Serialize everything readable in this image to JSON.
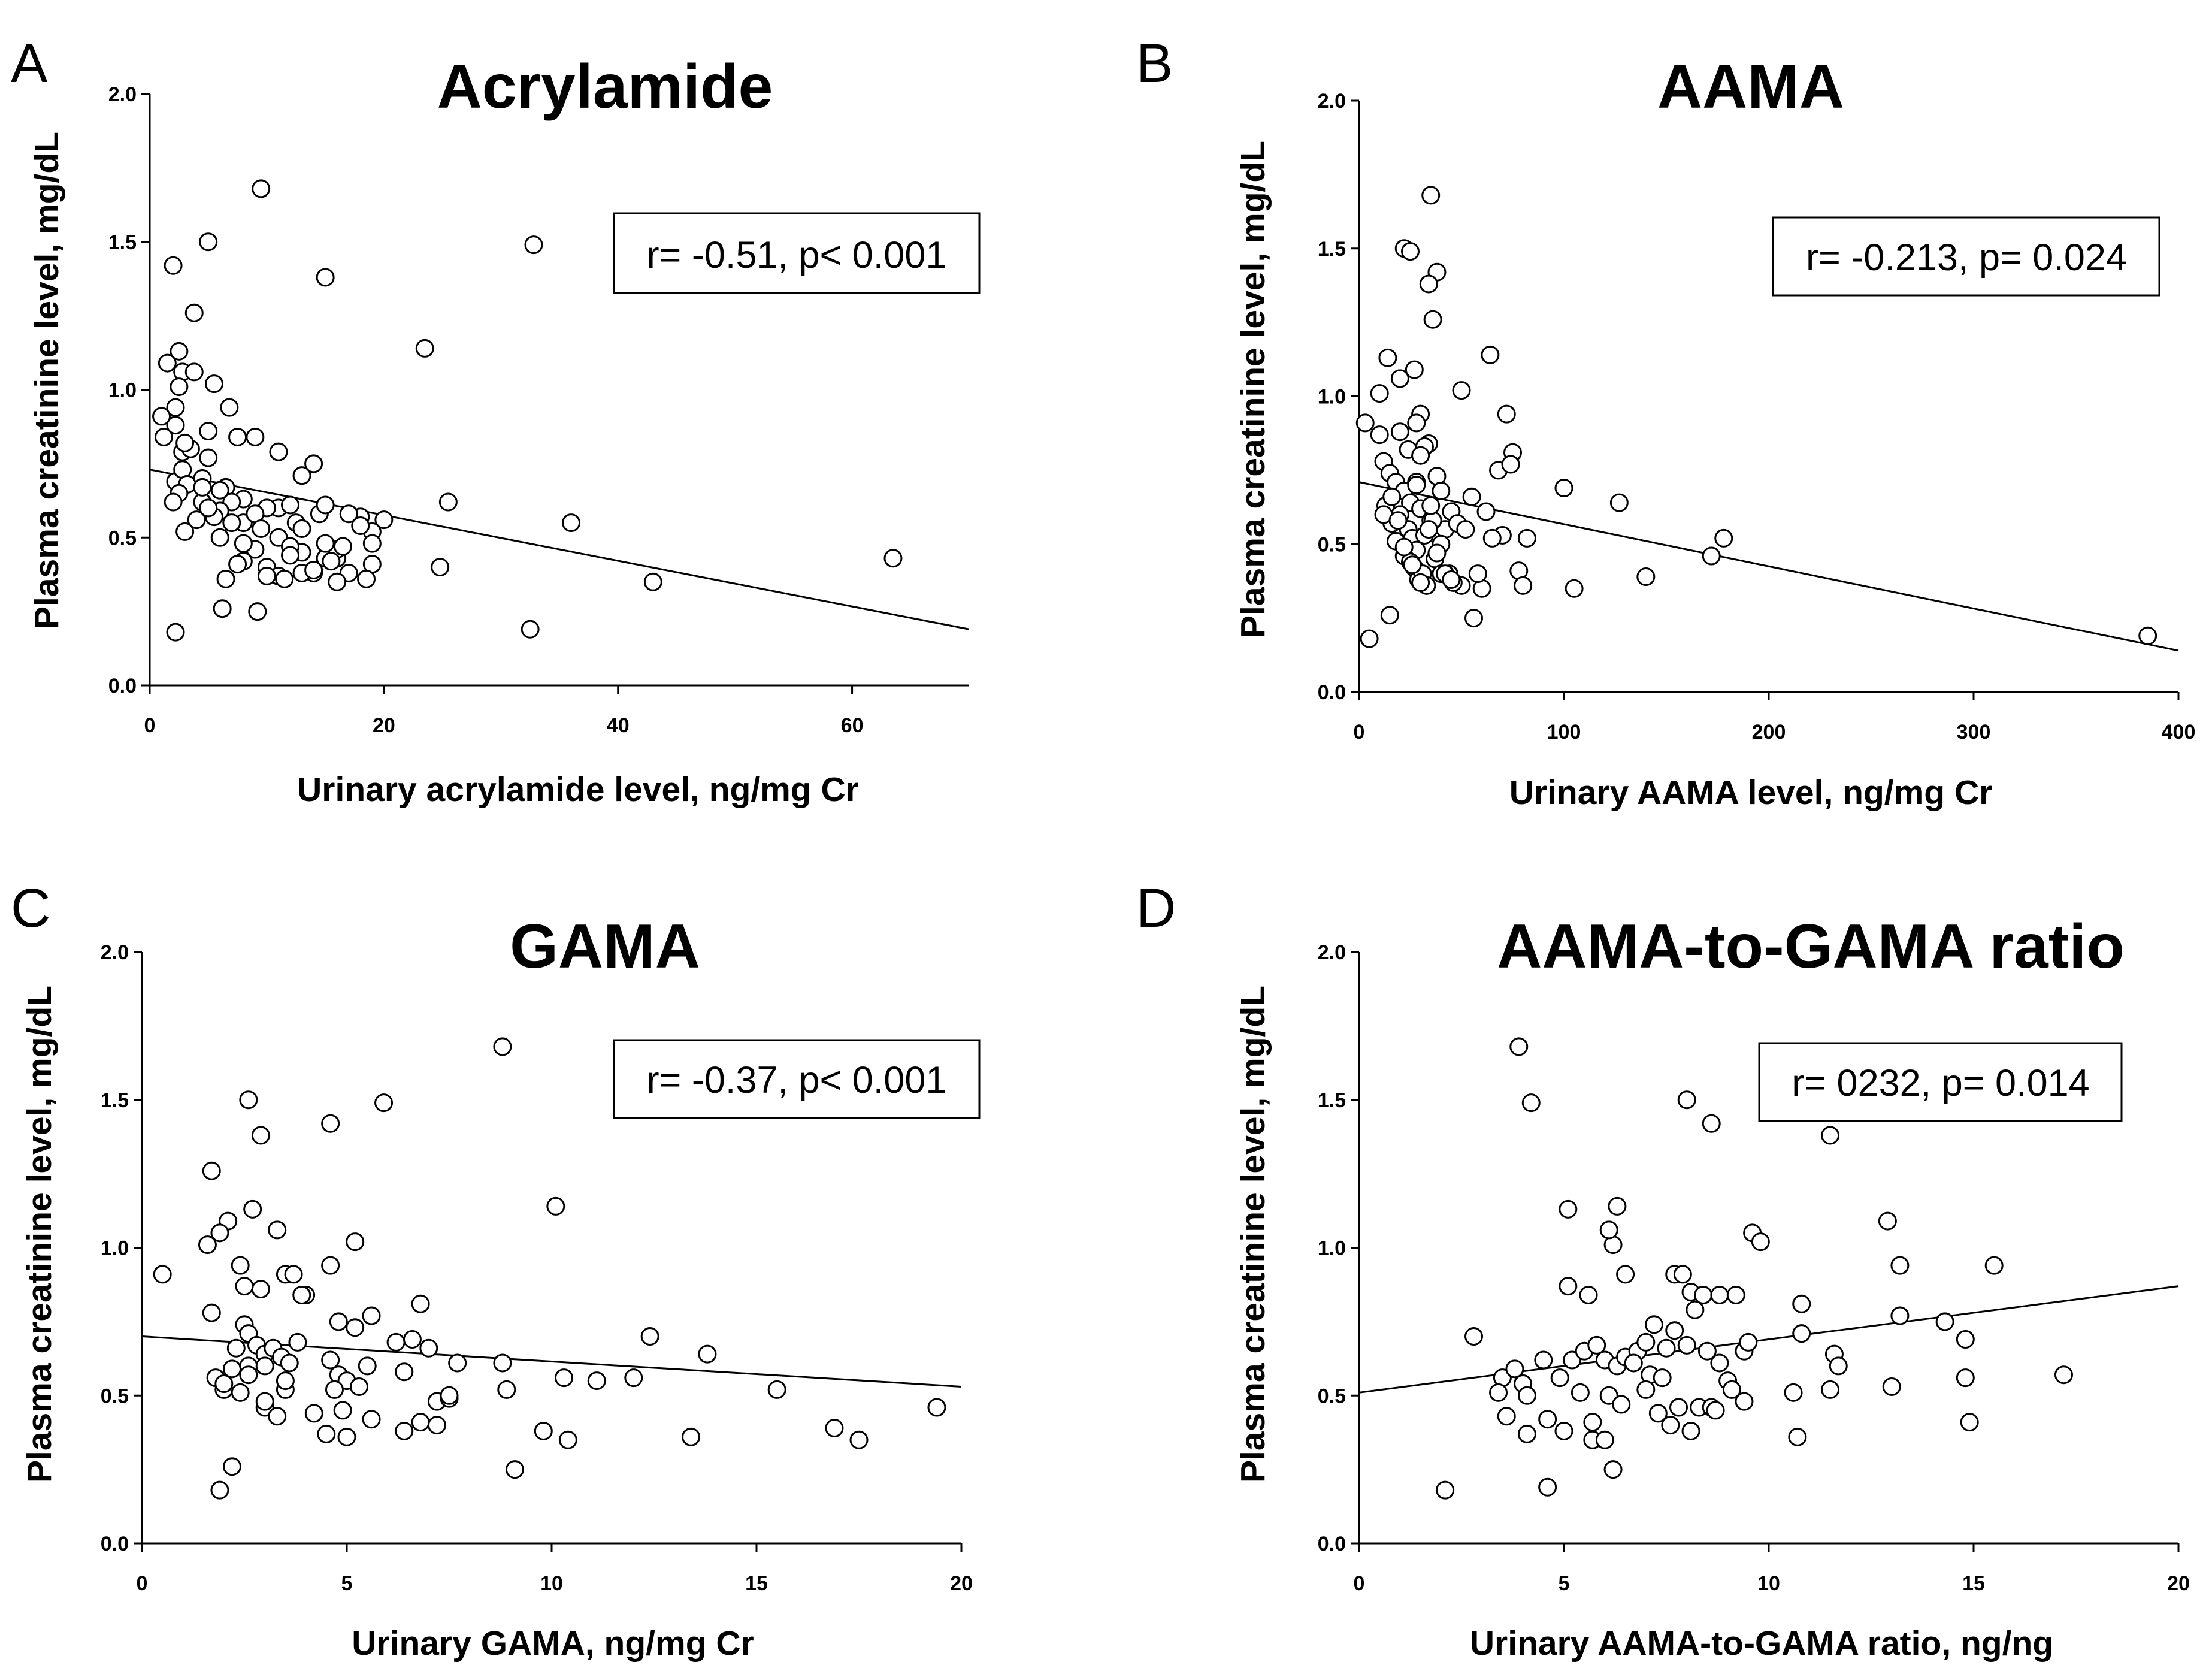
{
  "chart_data": [
    {
      "type": "scatter",
      "panel": "A",
      "title": "Acrylamide",
      "xlabel": "Urinary acrylamide level, ng/mg Cr",
      "ylabel": "Plasma creatinine level, mg/dL",
      "xlim": [
        0,
        70
      ],
      "ylim": [
        0,
        2.0
      ],
      "xticks": [
        0,
        20,
        40,
        60
      ],
      "xtick_labels": [
        "0",
        "20",
        "40",
        "60"
      ],
      "yticks": [
        0,
        0.5,
        1.0,
        1.5,
        2.0
      ],
      "ytick_labels": [
        "0.0",
        "0.5",
        "1.0",
        "1.5",
        "2.0"
      ],
      "annotation": "r= -0.51, p< 0.001",
      "regression": {
        "x": [
          0,
          70
        ],
        "y": [
          0.73,
          0.19
        ]
      },
      "points": {
        "x": [
          9.5,
          5,
          2,
          32.8,
          15,
          3.8,
          23.5,
          2.5,
          1.5,
          2.2,
          2.8,
          3.8,
          5.5,
          2.2,
          2.8,
          2.2,
          1,
          6.8,
          5,
          7.5,
          11,
          13,
          1.2,
          4.5,
          2.8,
          5,
          14,
          3.2,
          6.5,
          9,
          8,
          11,
          12,
          14.5,
          15,
          18,
          20,
          25.5,
          36,
          63.5,
          2.5,
          7,
          10,
          12.5,
          13,
          17,
          19,
          6,
          5.5,
          4,
          3,
          2.5,
          4.5,
          8,
          11,
          13,
          16,
          3.5,
          6,
          9,
          12,
          15,
          19,
          5,
          8,
          10,
          14,
          16,
          7,
          11,
          13,
          16.5,
          18.5,
          9,
          6,
          8,
          12,
          14,
          17,
          10,
          15,
          16,
          18,
          24.8,
          43,
          7.5,
          9.2,
          6.2,
          6.5,
          4.5,
          3,
          2,
          2.2,
          32.5,
          9.5,
          11.5,
          15.5,
          19
        ],
        "y": [
          1.68,
          1.5,
          1.42,
          1.49,
          1.38,
          1.26,
          1.14,
          1.13,
          1.09,
          0.94,
          1.06,
          1.06,
          1.02,
          0.88,
          0.79,
          0.69,
          0.91,
          0.94,
          0.86,
          0.84,
          0.79,
          0.71,
          0.84,
          0.7,
          0.73,
          0.77,
          0.75,
          0.68,
          0.67,
          0.84,
          0.63,
          0.6,
          0.61,
          0.58,
          0.61,
          0.57,
          0.56,
          0.62,
          0.55,
          0.43,
          0.65,
          0.62,
          0.6,
          0.55,
          0.53,
          0.58,
          0.52,
          0.59,
          0.57,
          0.56,
          0.52,
          1.01,
          0.62,
          0.55,
          0.5,
          0.45,
          0.43,
          0.8,
          0.5,
          0.46,
          0.47,
          0.43,
          0.41,
          0.6,
          0.42,
          0.4,
          0.38,
          0.46,
          0.55,
          0.37,
          0.38,
          0.47,
          0.36,
          0.58,
          0.66,
          0.48,
          0.44,
          0.39,
          0.38,
          0.37,
          0.48,
          0.35,
          0.54,
          0.4,
          0.35,
          0.41,
          0.25,
          0.26,
          0.36,
          0.67,
          0.82,
          0.62,
          0.18,
          0.19,
          0.53,
          0.36,
          0.42,
          0.48
        ]
      }
    },
    {
      "type": "scatter",
      "panel": "B",
      "title": "AAMA",
      "xlabel": "Urinary AAMA level, ng/mg Cr",
      "ylabel": "Plasma creatinine level, mg/dL",
      "xlim": [
        0,
        400
      ],
      "ylim": [
        0,
        2.0
      ],
      "xticks": [
        0,
        100,
        200,
        300,
        400
      ],
      "xtick_labels": [
        "0",
        "100",
        "200",
        "300",
        "400"
      ],
      "yticks": [
        0,
        0.5,
        1.0,
        1.5,
        2.0
      ],
      "ytick_labels": [
        "0.0",
        "0.5",
        "1.0",
        "1.5",
        "2.0"
      ],
      "annotation": "r= -0.213, p= 0.024",
      "regression": {
        "x": [
          0,
          400
        ],
        "y": [
          0.71,
          0.14
        ]
      },
      "points": {
        "x": [
          35,
          22,
          25,
          38,
          34,
          36,
          64,
          14,
          10,
          20,
          27,
          50,
          30,
          34,
          62,
          72,
          75,
          100,
          127,
          178,
          172,
          385,
          5,
          3,
          20,
          28,
          32,
          38,
          40,
          45,
          55,
          12,
          15,
          18,
          22,
          25,
          28,
          30,
          35,
          42,
          48,
          52,
          60,
          68,
          70,
          74,
          78,
          82,
          10,
          13,
          16,
          20,
          24,
          26,
          28,
          32,
          36,
          40,
          44,
          50,
          58,
          65,
          80,
          105,
          140,
          18,
          22,
          25,
          27,
          29,
          31,
          33,
          37,
          40,
          46,
          56,
          12,
          15,
          24,
          28,
          30,
          35,
          38,
          42,
          45,
          16,
          19,
          22,
          26,
          30,
          34
        ],
        "y": [
          1.68,
          1.5,
          1.49,
          1.42,
          1.38,
          1.26,
          1.14,
          1.13,
          1.01,
          1.06,
          1.09,
          1.02,
          0.94,
          0.84,
          0.61,
          0.94,
          0.81,
          0.69,
          0.64,
          0.52,
          0.46,
          0.19,
          0.18,
          0.91,
          0.88,
          0.91,
          0.83,
          0.73,
          0.68,
          0.61,
          0.66,
          0.78,
          0.74,
          0.71,
          0.68,
          0.64,
          0.71,
          0.62,
          0.58,
          0.55,
          0.57,
          0.55,
          0.35,
          0.75,
          0.53,
          0.77,
          0.41,
          0.52,
          0.87,
          0.63,
          0.57,
          0.6,
          0.55,
          0.52,
          0.48,
          0.53,
          0.58,
          0.5,
          0.4,
          0.36,
          0.4,
          0.52,
          0.36,
          0.35,
          0.39,
          0.51,
          0.46,
          0.44,
          0.42,
          0.38,
          0.4,
          0.36,
          0.45,
          0.4,
          0.37,
          0.25,
          0.6,
          0.26,
          0.82,
          0.7,
          0.8,
          0.63,
          0.47,
          0.4,
          0.38,
          0.66,
          0.58,
          0.49,
          0.43,
          0.37,
          0.55
        ]
      }
    },
    {
      "type": "scatter",
      "panel": "C",
      "title": "GAMA",
      "xlabel": "Urinary GAMA, ng/mg Cr",
      "ylabel": "Plasma creatinine level, mg/dL",
      "xlim": [
        0,
        20
      ],
      "ylim": [
        0,
        2.0
      ],
      "xticks": [
        0,
        5,
        10,
        15,
        20
      ],
      "xtick_labels": [
        "0",
        "5",
        "10",
        "15",
        "20"
      ],
      "yticks": [
        0,
        0.5,
        1.0,
        1.5,
        2.0
      ],
      "ytick_labels": [
        "0.0",
        "0.5",
        "1.0",
        "1.5",
        "2.0"
      ],
      "annotation": "r= -0.37, p< 0.001",
      "regression": {
        "x": [
          0,
          20
        ],
        "y": [
          0.7,
          0.53
        ]
      },
      "points": {
        "x": [
          8.8,
          2.6,
          5.9,
          4.6,
          2.9,
          1.7,
          10.1,
          2.7,
          2.1,
          1.9,
          3.3,
          5.2,
          1.6,
          0.5,
          2.4,
          3.5,
          3.7,
          4.0,
          2.9,
          4.6,
          2.5,
          3.9,
          6.8,
          5.6,
          4.8,
          12.4,
          13.8,
          1.7,
          2.3,
          2.5,
          2.6,
          2.8,
          3.0,
          3.2,
          3.4,
          3.6,
          3.8,
          4.6,
          4.8,
          5.0,
          5.2,
          5.5,
          6.2,
          6.4,
          6.6,
          7.0,
          7.2,
          7.5,
          7.7,
          8.8,
          10.3,
          11.1,
          12.0,
          15.5,
          16.9,
          17.5,
          19.4,
          1.8,
          2.0,
          2.2,
          2.4,
          2.6,
          3.0,
          3.3,
          3.5,
          4.7,
          4.9,
          5.3,
          6.4,
          6.8,
          7.2,
          7.5,
          8.9,
          9.1,
          9.8,
          10.4,
          13.4,
          2.0,
          2.6,
          3.0,
          3.5,
          4.2,
          4.5,
          5.0,
          5.6,
          3.0,
          2.2,
          1.9
        ],
        "y": [
          1.68,
          1.5,
          1.49,
          1.42,
          1.38,
          1.26,
          1.14,
          1.13,
          1.09,
          1.05,
          1.06,
          1.02,
          1.01,
          0.91,
          0.94,
          0.91,
          0.91,
          0.84,
          0.86,
          0.94,
          0.87,
          0.84,
          0.81,
          0.77,
          0.75,
          0.7,
          0.64,
          0.78,
          0.66,
          0.74,
          0.71,
          0.67,
          0.64,
          0.66,
          0.63,
          0.61,
          0.68,
          0.62,
          0.57,
          0.55,
          0.73,
          0.6,
          0.68,
          0.58,
          0.69,
          0.66,
          0.48,
          0.49,
          0.61,
          0.61,
          0.56,
          0.55,
          0.56,
          0.52,
          0.39,
          0.35,
          0.46,
          0.56,
          0.52,
          0.59,
          0.51,
          0.6,
          0.46,
          0.43,
          0.52,
          0.52,
          0.45,
          0.53,
          0.38,
          0.41,
          0.4,
          0.5,
          0.52,
          0.25,
          0.38,
          0.35,
          0.36,
          0.54,
          0.57,
          0.6,
          0.55,
          0.44,
          0.37,
          0.36,
          0.42,
          0.48,
          0.26,
          0.18
        ]
      }
    },
    {
      "type": "scatter",
      "panel": "D",
      "title": "AAMA-to-GAMA ratio",
      "xlabel": "Urinary AAMA-to-GAMA ratio, ng/ng",
      "ylabel": "Plasma creatinine level, mg/dL",
      "xlim": [
        0,
        20
      ],
      "ylim": [
        0,
        2.0
      ],
      "xticks": [
        0,
        5,
        10,
        15,
        20
      ],
      "xtick_labels": [
        "0",
        "5",
        "10",
        "15",
        "20"
      ],
      "yticks": [
        0,
        0.5,
        1.0,
        1.5,
        2.0
      ],
      "ytick_labels": [
        "0.0",
        "0.5",
        "1.0",
        "1.5",
        "2.0"
      ],
      "annotation": "r= 0232, p= 0.014",
      "regression": {
        "x": [
          0,
          20
        ],
        "y": [
          0.51,
          0.87
        ]
      },
      "points": {
        "x": [
          3.9,
          8.0,
          4.2,
          8.6,
          11.5,
          6.3,
          5.1,
          6.2,
          6.1,
          9.6,
          9.8,
          12.9,
          13.2,
          15.5,
          6.5,
          7.7,
          7.9,
          8.1,
          8.4,
          8.8,
          9.2,
          5.1,
          5.6,
          10.8,
          13.2,
          14.3,
          14.8,
          2.8,
          3.5,
          3.8,
          4.0,
          4.5,
          4.9,
          5.2,
          5.5,
          5.8,
          6.0,
          6.3,
          6.5,
          6.8,
          7.0,
          7.2,
          7.5,
          7.7,
          8.0,
          8.2,
          8.5,
          8.8,
          9.0,
          9.4,
          9.5,
          10.8,
          11.6,
          11.7,
          3.4,
          3.6,
          4.1,
          4.6,
          5.0,
          5.4,
          5.7,
          6.1,
          6.4,
          6.7,
          7.1,
          7.4,
          7.8,
          8.3,
          8.6,
          9.1,
          9.4,
          10.6,
          11.5,
          13.0,
          14.8,
          17.2,
          4.1,
          5.7,
          6.0,
          7.3,
          8.1,
          8.7,
          10.7,
          4.6,
          6.2,
          2.1,
          14.9,
          7.0,
          7.6
        ],
        "y": [
          1.68,
          1.5,
          1.49,
          1.42,
          1.38,
          1.14,
          1.13,
          1.01,
          1.06,
          1.05,
          1.02,
          1.09,
          0.94,
          0.94,
          0.91,
          0.91,
          0.91,
          0.85,
          0.84,
          0.84,
          0.84,
          0.87,
          0.84,
          0.81,
          0.77,
          0.75,
          0.69,
          0.7,
          0.56,
          0.59,
          0.54,
          0.62,
          0.56,
          0.62,
          0.65,
          0.67,
          0.62,
          0.6,
          0.63,
          0.65,
          0.68,
          0.74,
          0.66,
          0.72,
          0.67,
          0.79,
          0.65,
          0.61,
          0.55,
          0.65,
          0.68,
          0.71,
          0.64,
          0.6,
          0.51,
          0.43,
          0.5,
          0.42,
          0.38,
          0.51,
          0.41,
          0.5,
          0.47,
          0.61,
          0.57,
          0.56,
          0.46,
          0.46,
          0.46,
          0.52,
          0.48,
          0.51,
          0.52,
          0.53,
          0.56,
          0.57,
          0.37,
          0.35,
          0.35,
          0.44,
          0.38,
          0.45,
          0.36,
          0.19,
          0.25,
          0.18,
          0.41,
          0.52,
          0.4
        ]
      }
    }
  ]
}
